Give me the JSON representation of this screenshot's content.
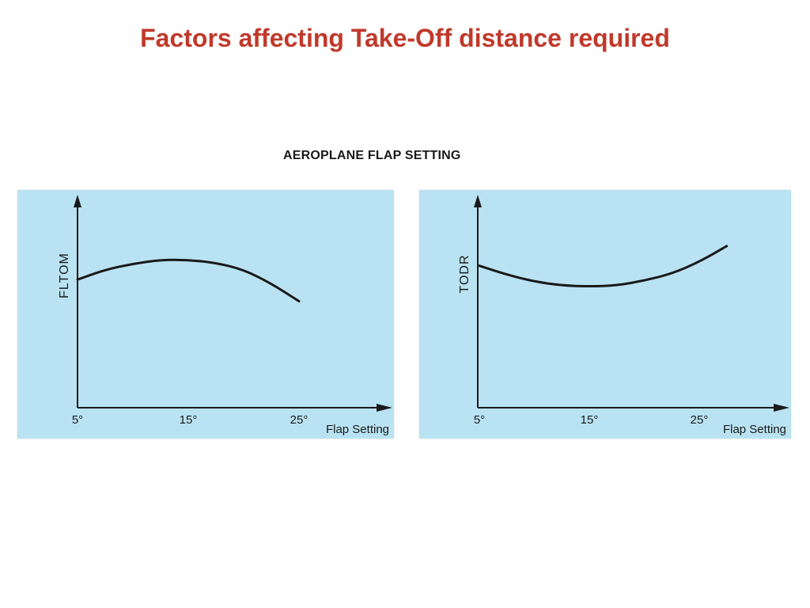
{
  "slide": {
    "title": "Factors affecting Take-Off distance required",
    "figure_heading": "AEROPLANE FLAP SETTING"
  },
  "chart_data": [
    {
      "type": "line",
      "title": "",
      "xlabel": "Flap Setting",
      "ylabel": "FLTOM",
      "x_ticks": [
        "5°",
        "15°",
        "25°"
      ],
      "xlim": [
        5,
        30
      ],
      "ylim": [
        0,
        10
      ],
      "grid": false,
      "series": [
        {
          "x": [
            5,
            7.5,
            10,
            12.5,
            15,
            17.5,
            20,
            22.5,
            25
          ],
          "y": [
            6.5,
            7.0,
            7.3,
            7.5,
            7.5,
            7.35,
            7.0,
            6.3,
            5.4
          ]
        }
      ]
    },
    {
      "type": "line",
      "title": "",
      "xlabel": "Flap Setting",
      "ylabel": "TODR",
      "x_ticks": [
        "5°",
        "15°",
        "25°"
      ],
      "xlim": [
        5,
        30
      ],
      "ylim": [
        0,
        10
      ],
      "grid": false,
      "series": [
        {
          "x": [
            5,
            7.5,
            10,
            12.5,
            15,
            17.5,
            20,
            22.5,
            25,
            27.5
          ],
          "y": [
            7.2,
            6.75,
            6.4,
            6.2,
            6.15,
            6.2,
            6.45,
            6.8,
            7.4,
            8.2
          ]
        }
      ]
    }
  ]
}
